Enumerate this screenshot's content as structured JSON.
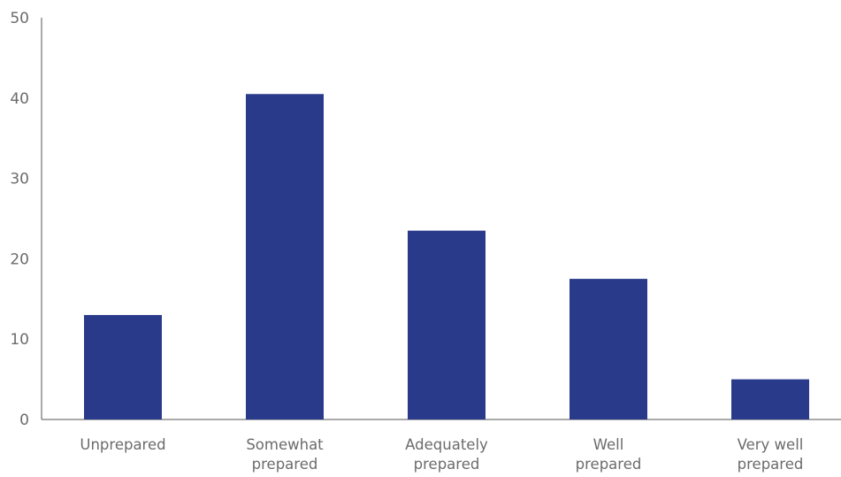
{
  "chart_data": {
    "type": "bar",
    "title": "",
    "xlabel": "",
    "ylabel": "",
    "categories": [
      [
        "Unprepared"
      ],
      [
        "Somewhat",
        "prepared"
      ],
      [
        "Adequately",
        "prepared"
      ],
      [
        "Well",
        "prepared"
      ],
      [
        "Very well",
        "prepared"
      ]
    ],
    "values": [
      13,
      40.5,
      23.5,
      17.5,
      5
    ],
    "ylim": [
      0,
      50
    ],
    "yticks": [
      0,
      10,
      20,
      30,
      40,
      50
    ],
    "grid": false,
    "legend": "none",
    "colors": {
      "bar": "#2a3a8a",
      "axis": "#555555",
      "text": "#6b6b6b"
    }
  }
}
